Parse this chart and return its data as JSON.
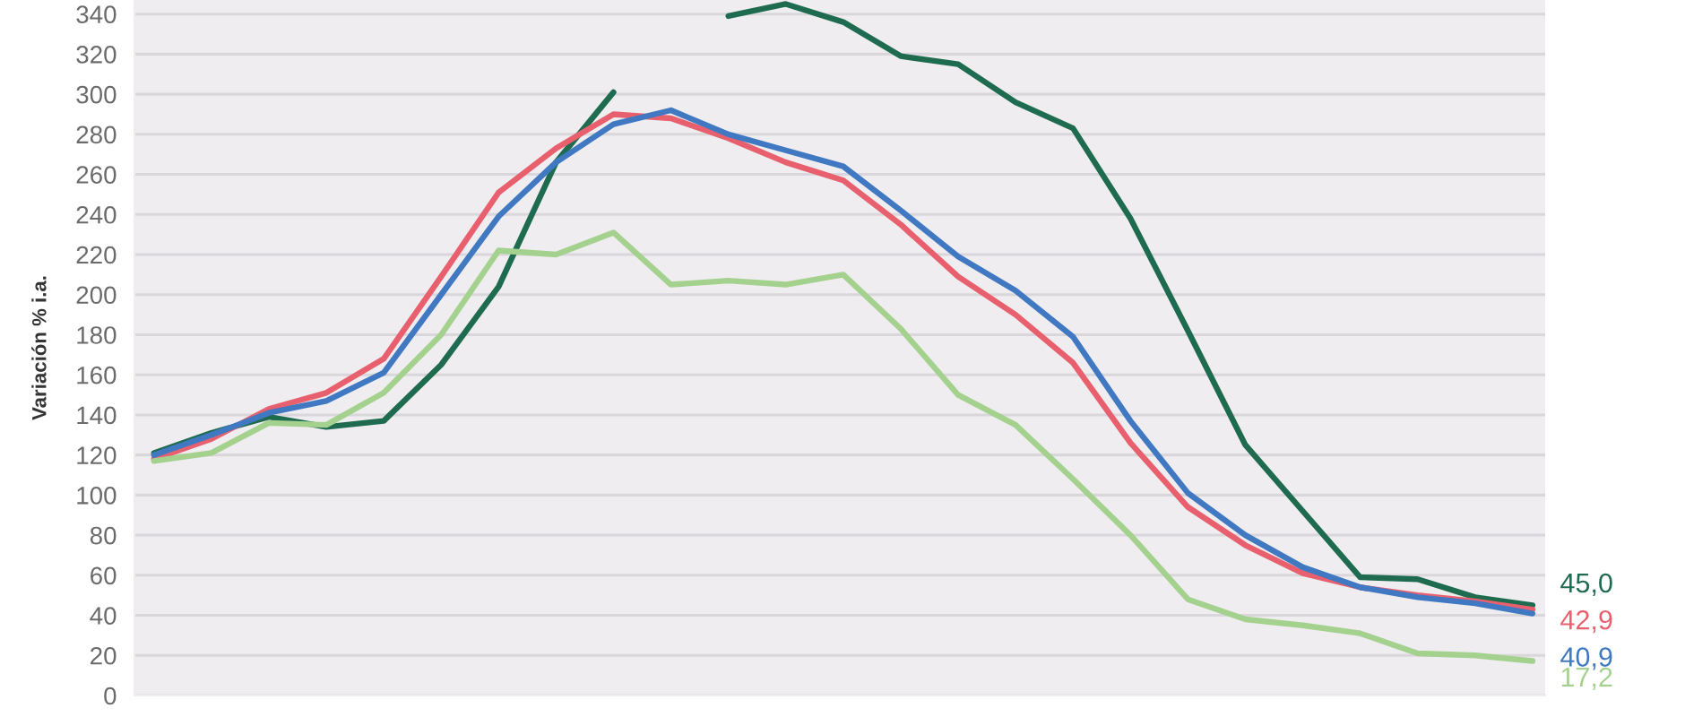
{
  "chart_data": {
    "type": "line",
    "ylabel": "Variación % i.a.",
    "categories": [
      null,
      null,
      null,
      null,
      null,
      null,
      null,
      null,
      null,
      null,
      null,
      null,
      null,
      null,
      null,
      null,
      null,
      null,
      null,
      null,
      null,
      null,
      null,
      null,
      null
    ],
    "series": [
      {
        "color": "#1f6b4f",
        "values": [
          121,
          131,
          139,
          134,
          137,
          165,
          204,
          266,
          301,
          null,
          339,
          345,
          336,
          319,
          315,
          296,
          283,
          238,
          182,
          125,
          92,
          59,
          58,
          49,
          45.0
        ],
        "value_labels": [
          null,
          null,
          null,
          null,
          null,
          null,
          null,
          null,
          null,
          null,
          null,
          null,
          null,
          null,
          null,
          null,
          null,
          null,
          null,
          null,
          null,
          null,
          null,
          null,
          "45,0"
        ]
      },
      {
        "color": "#e8606e",
        "values": [
          118,
          128,
          143,
          151,
          168,
          209,
          251,
          273,
          290,
          288,
          278,
          266,
          257,
          235,
          209,
          190,
          166,
          126,
          94,
          75,
          61,
          54,
          50,
          47,
          42.9
        ],
        "value_labels": [
          null,
          null,
          null,
          null,
          null,
          null,
          null,
          null,
          null,
          null,
          null,
          null,
          null,
          null,
          null,
          null,
          null,
          null,
          null,
          null,
          null,
          null,
          null,
          null,
          "42,9"
        ]
      },
      {
        "color": "#4079c2",
        "values": [
          120,
          130,
          141,
          147,
          161,
          200,
          239,
          266,
          285,
          292,
          280,
          272,
          264,
          242,
          219,
          202,
          179,
          137,
          101,
          80,
          64,
          54,
          49,
          46,
          40.9
        ],
        "value_labels": [
          null,
          null,
          null,
          null,
          null,
          null,
          null,
          null,
          null,
          null,
          null,
          null,
          null,
          null,
          null,
          null,
          null,
          null,
          null,
          null,
          null,
          null,
          null,
          null,
          "40,9"
        ]
      },
      {
        "color": "#a5d18f",
        "values": [
          117,
          121,
          136,
          135,
          151,
          180,
          222,
          220,
          231,
          205,
          207,
          205,
          210,
          183,
          150,
          135,
          108,
          80,
          48,
          38,
          35,
          31,
          21,
          20,
          17.2
        ],
        "value_labels": [
          null,
          null,
          null,
          null,
          null,
          null,
          null,
          null,
          null,
          null,
          null,
          null,
          null,
          null,
          null,
          null,
          null,
          null,
          null,
          null,
          null,
          null,
          null,
          null,
          "17,2"
        ]
      }
    ],
    "ylim": [
      0,
      347
    ],
    "yticks": [
      0,
      20,
      40,
      60,
      80,
      100,
      120,
      140,
      160,
      180,
      200,
      220,
      240,
      260,
      280,
      300,
      320,
      340
    ],
    "grid": "y",
    "tick_labels": "y"
  }
}
